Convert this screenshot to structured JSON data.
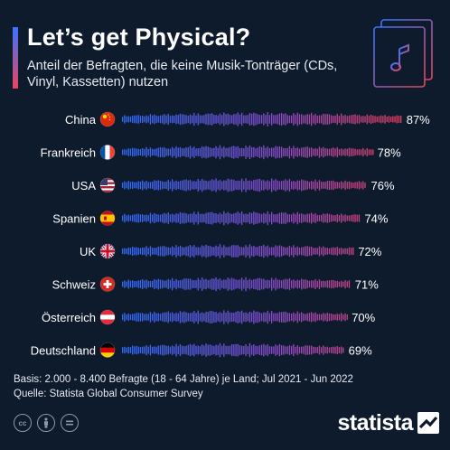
{
  "header": {
    "title": "Let’s get Physical?",
    "subtitle": "Anteil der Befragten, die keine Musik-Tonträger (CDs, Vinyl, Kassetten) nutzen"
  },
  "footer": {
    "basis": "Basis: 2.000 - 8.400 Befragte (18 - 64 Jahre) je Land; Jul 2021 - Jun 2022",
    "source": "Quelle: Statista Global Consumer Survey",
    "brand": "statista",
    "license_icons": [
      "creative-commons-icon",
      "attribution-icon",
      "no-derivatives-icon"
    ]
  },
  "chart_data": {
    "type": "bar",
    "orientation": "horizontal",
    "categories": [
      "China",
      "Frankreich",
      "USA",
      "Spanien",
      "UK",
      "Schweiz",
      "Österreich",
      "Deutschland"
    ],
    "flags": [
      "china-flag-icon",
      "france-flag-icon",
      "usa-flag-icon",
      "spain-flag-icon",
      "uk-flag-icon",
      "switzerland-flag-icon",
      "austria-flag-icon",
      "germany-flag-icon"
    ],
    "values": [
      87,
      78,
      76,
      74,
      72,
      71,
      70,
      69
    ],
    "value_labels": [
      "87%",
      "78%",
      "76%",
      "74%",
      "72%",
      "71%",
      "70%",
      "69%"
    ],
    "unit": "%",
    "xlim": [
      0,
      100
    ],
    "grid": false,
    "legend": "none",
    "bar_style": "waveform"
  },
  "colors": {
    "background": "#0e1b2d",
    "accent_blue": "#3a73ff",
    "accent_red": "#e8455f",
    "text": "#ffffff"
  }
}
